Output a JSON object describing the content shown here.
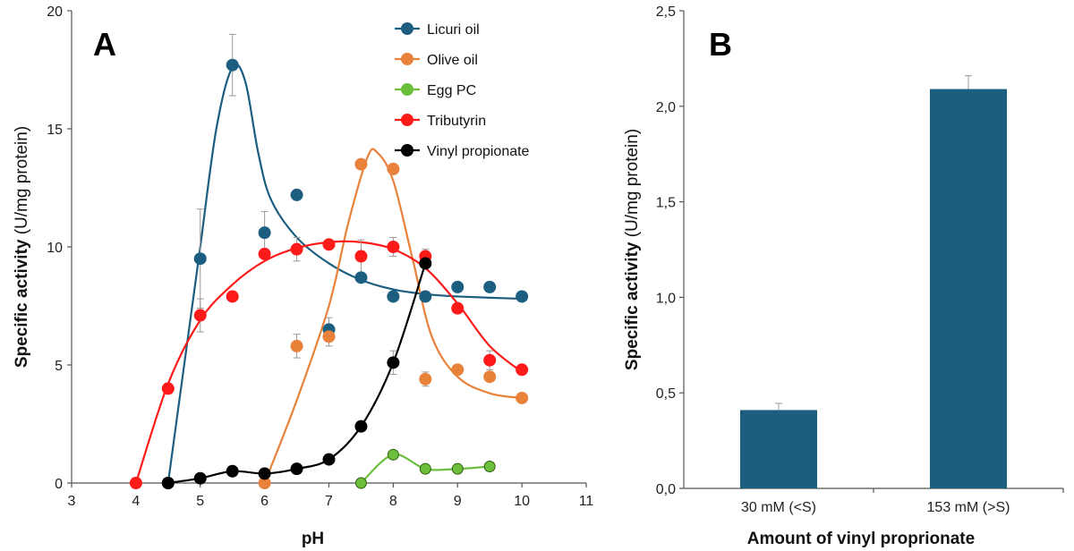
{
  "chart_data": [
    {
      "panel": "A",
      "type": "scatter",
      "xlabel": "pH",
      "ylabel": "Specific activity",
      "ylabel_unit": "(U/mg protein)",
      "xlim": [
        3,
        11
      ],
      "ylim": [
        0,
        20
      ],
      "xticks": [
        3,
        4,
        5,
        6,
        7,
        8,
        9,
        10,
        11
      ],
      "yticks": [
        0,
        5,
        10,
        15,
        20
      ],
      "legend_position": "top-right",
      "series": [
        {
          "name": "Licuri oil",
          "color": "#1b5e80",
          "points": [
            [
              4.5,
              0
            ],
            [
              5,
              9.5
            ],
            [
              5.5,
              17.7
            ],
            [
              6,
              10.6
            ],
            [
              6.5,
              12.2
            ],
            [
              7,
              6.5
            ],
            [
              7.5,
              8.7
            ],
            [
              8,
              7.9
            ],
            [
              8.5,
              7.9
            ],
            [
              9,
              8.3
            ],
            [
              9.5,
              8.3
            ],
            [
              10,
              7.9
            ]
          ],
          "errors": [
            [
              5,
              2.1
            ],
            [
              5.5,
              1.3
            ],
            [
              6,
              0.9
            ],
            [
              7,
              0.5
            ]
          ],
          "curve": [
            [
              4.5,
              0
            ],
            [
              4.8,
              6
            ],
            [
              5,
              10
            ],
            [
              5.25,
              15
            ],
            [
              5.5,
              17.6
            ],
            [
              5.7,
              17
            ],
            [
              5.9,
              14
            ],
            [
              6.1,
              12
            ],
            [
              6.5,
              10.4
            ],
            [
              7,
              9.3
            ],
            [
              7.5,
              8.6
            ],
            [
              8,
              8.2
            ],
            [
              8.5,
              8.0
            ],
            [
              9,
              7.9
            ],
            [
              10,
              7.8
            ]
          ]
        },
        {
          "name": "Olive oil",
          "color": "#e8813a",
          "points": [
            [
              6,
              0
            ],
            [
              6.5,
              5.8
            ],
            [
              7,
              6.2
            ],
            [
              7.5,
              13.5
            ],
            [
              8,
              13.3
            ],
            [
              8.5,
              4.4
            ],
            [
              9,
              4.8
            ],
            [
              9.5,
              4.5
            ],
            [
              10,
              3.6
            ]
          ],
          "errors": [
            [
              6.5,
              0.5
            ],
            [
              7,
              0.4
            ],
            [
              8.5,
              0.3
            ]
          ],
          "curve": [
            [
              6,
              0
            ],
            [
              6.5,
              3.5
            ],
            [
              7,
              7.5
            ],
            [
              7.3,
              11
            ],
            [
              7.6,
              13.8
            ],
            [
              7.75,
              14
            ],
            [
              8,
              12.8
            ],
            [
              8.3,
              9.5
            ],
            [
              8.6,
              6.2
            ],
            [
              9,
              4.5
            ],
            [
              9.5,
              3.8
            ],
            [
              10,
              3.6
            ]
          ]
        },
        {
          "name": "Egg PC",
          "color": "#6cbf3c",
          "points": [
            [
              7.5,
              0
            ],
            [
              8,
              1.2
            ],
            [
              8.5,
              0.6
            ],
            [
              9,
              0.6
            ],
            [
              9.5,
              0.7
            ]
          ],
          "errors": [],
          "curve": [
            [
              7.5,
              0
            ],
            [
              8,
              1.2
            ],
            [
              8.5,
              0.6
            ],
            [
              9,
              0.6
            ],
            [
              9.5,
              0.7
            ]
          ]
        },
        {
          "name": "Tributyrin",
          "color": "#ff1a1a",
          "points": [
            [
              4,
              0
            ],
            [
              4.5,
              4
            ],
            [
              5,
              7.1
            ],
            [
              5.5,
              7.9
            ],
            [
              6,
              9.7
            ],
            [
              6.5,
              9.9
            ],
            [
              7,
              10.1
            ],
            [
              7.5,
              9.6
            ],
            [
              8,
              10.0
            ],
            [
              8.5,
              9.6
            ],
            [
              9,
              7.4
            ],
            [
              9.5,
              5.2
            ],
            [
              10,
              4.8
            ]
          ],
          "errors": [
            [
              4.5,
              0.2
            ],
            [
              5,
              0.7
            ],
            [
              6.5,
              0.5
            ],
            [
              7.5,
              0.7
            ],
            [
              8,
              0.4
            ],
            [
              8.5,
              0.3
            ],
            [
              9.5,
              0.4
            ]
          ],
          "curve": [
            [
              4,
              0
            ],
            [
              4.5,
              4.2
            ],
            [
              5,
              6.9
            ],
            [
              5.5,
              8.4
            ],
            [
              6,
              9.4
            ],
            [
              6.5,
              9.95
            ],
            [
              7,
              10.2
            ],
            [
              7.5,
              10.2
            ],
            [
              8,
              9.9
            ],
            [
              8.5,
              9.1
            ],
            [
              9,
              7.6
            ],
            [
              9.5,
              5.8
            ],
            [
              10,
              4.7
            ]
          ]
        },
        {
          "name": "Vinyl propionate",
          "color": "#000000",
          "points": [
            [
              4.5,
              0
            ],
            [
              5,
              0.2
            ],
            [
              5.5,
              0.5
            ],
            [
              6,
              0.4
            ],
            [
              6.5,
              0.6
            ],
            [
              7,
              1.0
            ],
            [
              7.5,
              2.4
            ],
            [
              8,
              5.1
            ],
            [
              8.5,
              9.3
            ]
          ],
          "errors": [
            [
              8,
              0.5
            ]
          ],
          "curve": [
            [
              4.5,
              0
            ],
            [
              5,
              0.2
            ],
            [
              5.5,
              0.5
            ],
            [
              6,
              0.4
            ],
            [
              6.5,
              0.6
            ],
            [
              7,
              1.0
            ],
            [
              7.5,
              2.4
            ],
            [
              8,
              5.1
            ],
            [
              8.5,
              9.3
            ]
          ]
        }
      ]
    },
    {
      "panel": "B",
      "type": "bar",
      "xlabel": "Amount of vinyl proprionate",
      "ylabel": "Specific activity",
      "ylabel_unit": "(U/mg protein)",
      "ylim": [
        0,
        2.5
      ],
      "yticks": [
        "0,0",
        "0,5",
        "1,0",
        "1,5",
        "2,0",
        "2,5"
      ],
      "categories": [
        "30 mM (<S)",
        "153 mM (>S)"
      ],
      "values": [
        0.41,
        2.09
      ],
      "errors": [
        0.035,
        0.07
      ],
      "color": "#1b5e80"
    }
  ]
}
